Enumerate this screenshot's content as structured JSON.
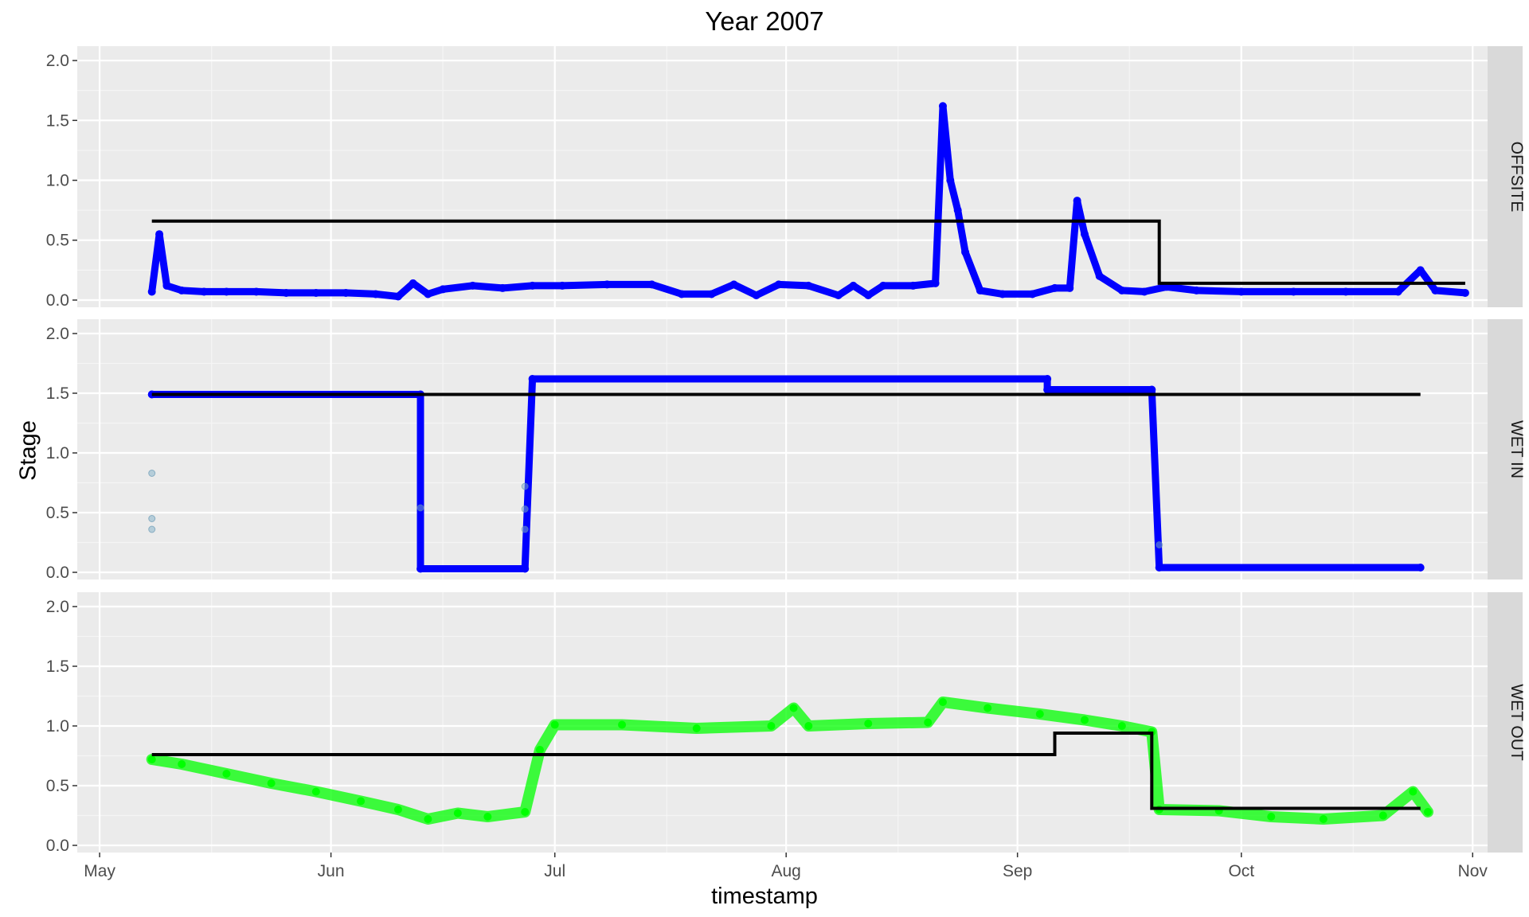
{
  "chart_data": {
    "type": "scatter",
    "title": "Year 2007",
    "xlabel": "timestamp",
    "ylabel": "Stage",
    "x_ticks": [
      "May",
      "Jun",
      "Jul",
      "Aug",
      "Sep",
      "Oct",
      "Nov"
    ],
    "x_range": [
      "2007-04-28",
      "2007-11-03"
    ],
    "y_ticks": [
      "0.0",
      "0.5",
      "1.0",
      "1.5",
      "2.0"
    ],
    "ylim": [
      -0.06,
      2.12
    ],
    "grid": true,
    "colors": {
      "panel_bg": "#EBEBEB",
      "strip_bg": "#D9D9D9",
      "grid_major": "#FFFFFF",
      "offsite_points": "#0000FF",
      "wet_in_points": "#0000FF",
      "wet_out_points": "#00FF00",
      "outlier_points": "#7FAFC8",
      "step_line": "#000000"
    },
    "panels": [
      {
        "name": "OFFSITE",
        "points": [
          {
            "x": "2007-05-08",
            "y": 0.07
          },
          {
            "x": "2007-05-09",
            "y": 0.55
          },
          {
            "x": "2007-05-10",
            "y": 0.12
          },
          {
            "x": "2007-05-12",
            "y": 0.08
          },
          {
            "x": "2007-05-15",
            "y": 0.07
          },
          {
            "x": "2007-05-18",
            "y": 0.07
          },
          {
            "x": "2007-05-22",
            "y": 0.07
          },
          {
            "x": "2007-05-26",
            "y": 0.06
          },
          {
            "x": "2007-05-30",
            "y": 0.06
          },
          {
            "x": "2007-06-03",
            "y": 0.06
          },
          {
            "x": "2007-06-07",
            "y": 0.05
          },
          {
            "x": "2007-06-10",
            "y": 0.03
          },
          {
            "x": "2007-06-12",
            "y": 0.14
          },
          {
            "x": "2007-06-14",
            "y": 0.05
          },
          {
            "x": "2007-06-16",
            "y": 0.09
          },
          {
            "x": "2007-06-20",
            "y": 0.12
          },
          {
            "x": "2007-06-24",
            "y": 0.1
          },
          {
            "x": "2007-06-28",
            "y": 0.12
          },
          {
            "x": "2007-07-02",
            "y": 0.12
          },
          {
            "x": "2007-07-08",
            "y": 0.13
          },
          {
            "x": "2007-07-14",
            "y": 0.13
          },
          {
            "x": "2007-07-18",
            "y": 0.05
          },
          {
            "x": "2007-07-22",
            "y": 0.05
          },
          {
            "x": "2007-07-25",
            "y": 0.13
          },
          {
            "x": "2007-07-28",
            "y": 0.04
          },
          {
            "x": "2007-07-31",
            "y": 0.13
          },
          {
            "x": "2007-08-04",
            "y": 0.12
          },
          {
            "x": "2007-08-08",
            "y": 0.04
          },
          {
            "x": "2007-08-10",
            "y": 0.12
          },
          {
            "x": "2007-08-12",
            "y": 0.04
          },
          {
            "x": "2007-08-14",
            "y": 0.12
          },
          {
            "x": "2007-08-18",
            "y": 0.12
          },
          {
            "x": "2007-08-21",
            "y": 0.14
          },
          {
            "x": "2007-08-22",
            "y": 1.62
          },
          {
            "x": "2007-08-23",
            "y": 1.0
          },
          {
            "x": "2007-08-24",
            "y": 0.75
          },
          {
            "x": "2007-08-25",
            "y": 0.4
          },
          {
            "x": "2007-08-27",
            "y": 0.08
          },
          {
            "x": "2007-08-30",
            "y": 0.05
          },
          {
            "x": "2007-09-03",
            "y": 0.05
          },
          {
            "x": "2007-09-06",
            "y": 0.1
          },
          {
            "x": "2007-09-08",
            "y": 0.1
          },
          {
            "x": "2007-09-09",
            "y": 0.83
          },
          {
            "x": "2007-09-10",
            "y": 0.55
          },
          {
            "x": "2007-09-12",
            "y": 0.2
          },
          {
            "x": "2007-09-15",
            "y": 0.08
          },
          {
            "x": "2007-09-18",
            "y": 0.07
          },
          {
            "x": "2007-09-21",
            "y": 0.11
          },
          {
            "x": "2007-09-25",
            "y": 0.08
          },
          {
            "x": "2007-10-01",
            "y": 0.07
          },
          {
            "x": "2007-10-08",
            "y": 0.07
          },
          {
            "x": "2007-10-15",
            "y": 0.07
          },
          {
            "x": "2007-10-22",
            "y": 0.07
          },
          {
            "x": "2007-10-25",
            "y": 0.25
          },
          {
            "x": "2007-10-27",
            "y": 0.08
          },
          {
            "x": "2007-10-31",
            "y": 0.06
          }
        ],
        "step_line": [
          {
            "x": "2007-05-08",
            "y": 0.66
          },
          {
            "x": "2007-09-20",
            "y": 0.66
          },
          {
            "x": "2007-09-20",
            "y": 0.14
          },
          {
            "x": "2007-10-31",
            "y": 0.14
          }
        ]
      },
      {
        "name": "WET IN",
        "points": [
          {
            "x": "2007-05-08",
            "y": 1.49
          },
          {
            "x": "2007-06-13",
            "y": 1.49
          },
          {
            "x": "2007-06-13",
            "y": 0.03
          },
          {
            "x": "2007-06-27",
            "y": 0.03
          },
          {
            "x": "2007-06-28",
            "y": 1.62
          },
          {
            "x": "2007-09-05",
            "y": 1.62
          },
          {
            "x": "2007-09-05",
            "y": 1.53
          },
          {
            "x": "2007-09-19",
            "y": 1.53
          },
          {
            "x": "2007-09-20",
            "y": 0.04
          },
          {
            "x": "2007-10-25",
            "y": 0.04
          }
        ],
        "outliers": [
          {
            "x": "2007-05-08",
            "y": 0.83
          },
          {
            "x": "2007-05-08",
            "y": 0.45
          },
          {
            "x": "2007-05-08",
            "y": 0.36
          },
          {
            "x": "2007-06-13",
            "y": 0.54
          },
          {
            "x": "2007-06-27",
            "y": 0.72
          },
          {
            "x": "2007-06-27",
            "y": 0.53
          },
          {
            "x": "2007-06-27",
            "y": 0.36
          },
          {
            "x": "2007-09-20",
            "y": 0.23
          }
        ],
        "step_line": [
          {
            "x": "2007-05-08",
            "y": 1.49
          },
          {
            "x": "2007-10-25",
            "y": 1.49
          }
        ]
      },
      {
        "name": "WET OUT",
        "points": [
          {
            "x": "2007-05-08",
            "y": 0.72
          },
          {
            "x": "2007-05-12",
            "y": 0.68
          },
          {
            "x": "2007-05-18",
            "y": 0.6
          },
          {
            "x": "2007-05-24",
            "y": 0.52
          },
          {
            "x": "2007-05-30",
            "y": 0.45
          },
          {
            "x": "2007-06-05",
            "y": 0.37
          },
          {
            "x": "2007-06-10",
            "y": 0.3
          },
          {
            "x": "2007-06-14",
            "y": 0.22
          },
          {
            "x": "2007-06-18",
            "y": 0.27
          },
          {
            "x": "2007-06-22",
            "y": 0.24
          },
          {
            "x": "2007-06-27",
            "y": 0.28
          },
          {
            "x": "2007-06-29",
            "y": 0.8
          },
          {
            "x": "2007-07-01",
            "y": 1.01
          },
          {
            "x": "2007-07-10",
            "y": 1.01
          },
          {
            "x": "2007-07-20",
            "y": 0.98
          },
          {
            "x": "2007-07-30",
            "y": 1.0
          },
          {
            "x": "2007-08-02",
            "y": 1.15
          },
          {
            "x": "2007-08-04",
            "y": 1.0
          },
          {
            "x": "2007-08-12",
            "y": 1.02
          },
          {
            "x": "2007-08-20",
            "y": 1.03
          },
          {
            "x": "2007-08-22",
            "y": 1.2
          },
          {
            "x": "2007-08-28",
            "y": 1.15
          },
          {
            "x": "2007-09-04",
            "y": 1.1
          },
          {
            "x": "2007-09-10",
            "y": 1.05
          },
          {
            "x": "2007-09-15",
            "y": 1.0
          },
          {
            "x": "2007-09-19",
            "y": 0.95
          },
          {
            "x": "2007-09-20",
            "y": 0.3
          },
          {
            "x": "2007-09-28",
            "y": 0.29
          },
          {
            "x": "2007-10-05",
            "y": 0.24
          },
          {
            "x": "2007-10-12",
            "y": 0.22
          },
          {
            "x": "2007-10-20",
            "y": 0.25
          },
          {
            "x": "2007-10-24",
            "y": 0.45
          },
          {
            "x": "2007-10-26",
            "y": 0.28
          }
        ],
        "step_line": [
          {
            "x": "2007-05-08",
            "y": 0.76
          },
          {
            "x": "2007-09-06",
            "y": 0.76
          },
          {
            "x": "2007-09-06",
            "y": 0.94
          },
          {
            "x": "2007-09-19",
            "y": 0.94
          },
          {
            "x": "2007-09-19",
            "y": 0.31
          },
          {
            "x": "2007-10-25",
            "y": 0.31
          }
        ]
      }
    ]
  }
}
